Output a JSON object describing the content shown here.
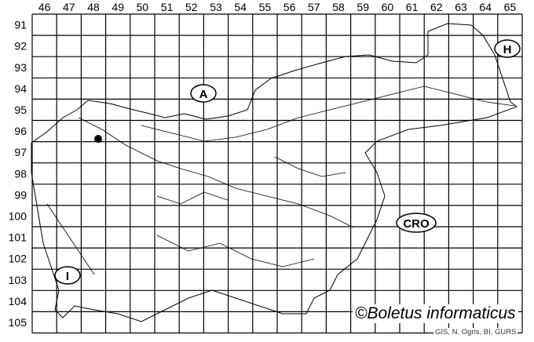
{
  "grid": {
    "columns": [
      "46",
      "47",
      "48",
      "49",
      "50",
      "51",
      "52",
      "53",
      "54",
      "55",
      "56",
      "57",
      "58",
      "59",
      "60",
      "61",
      "62",
      "63",
      "64",
      "65"
    ],
    "rows": [
      "91",
      "92",
      "93",
      "94",
      "95",
      "96",
      "97",
      "98",
      "99",
      "100",
      "101",
      "102",
      "103",
      "104",
      "105"
    ]
  },
  "country_labels": {
    "austria": "A",
    "hungary": "H",
    "italy": "I",
    "croatia": "CRO"
  },
  "records": [
    {
      "column": "48",
      "row": "96"
    }
  ],
  "credit": "©Boletus informaticus",
  "source": "GIS, N. Ogris, BI, GURS"
}
